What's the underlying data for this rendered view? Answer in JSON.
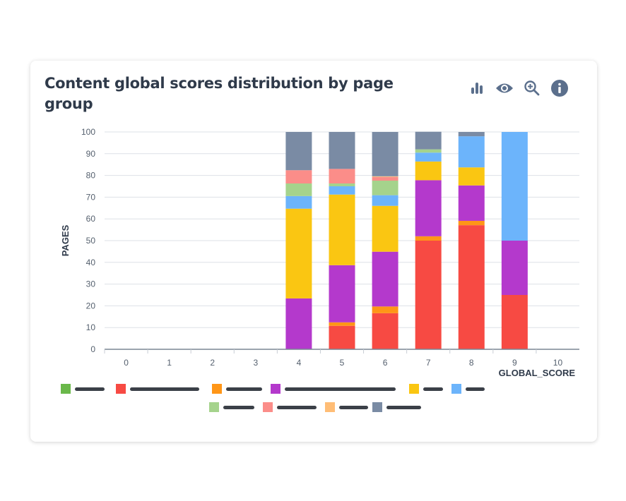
{
  "card": {
    "title": "Content global scores distribution by page group",
    "icons": [
      "bar-chart-icon",
      "eye-icon",
      "zoom-in-icon",
      "info-icon"
    ],
    "icon_color": "#5b6f8c"
  },
  "chart_data": {
    "type": "bar",
    "stacked": true,
    "title": "Content global scores distribution by page group",
    "xlabel": "GLOBAL_SCORE",
    "ylabel": "PAGES",
    "ylim": [
      0,
      100
    ],
    "yticks": [
      "0",
      "10",
      "20",
      "30",
      "40",
      "50",
      "60",
      "70",
      "80",
      "90",
      "100"
    ],
    "grid": true,
    "legend_placement": "bottom",
    "categories": [
      "0",
      "1",
      "2",
      "3",
      "4",
      "5",
      "6",
      "7",
      "8",
      "9",
      "10"
    ],
    "series": [
      {
        "color": "#6ab84a",
        "values": [
          0,
          0,
          0,
          0,
          0,
          0,
          0,
          0,
          0,
          0,
          0
        ]
      },
      {
        "color": "#f74a43",
        "values": [
          0,
          0,
          0,
          0,
          0,
          10.8,
          16.6,
          50,
          57.1,
          25,
          0
        ]
      },
      {
        "color": "#ff9617",
        "values": [
          0,
          0,
          0,
          0,
          0,
          1.6,
          3.1,
          2,
          2,
          0,
          0
        ]
      },
      {
        "color": "#b439cc",
        "values": [
          0,
          0,
          0,
          0,
          23.4,
          26.3,
          25.2,
          25.8,
          16.3,
          25,
          0
        ]
      },
      {
        "color": "#fac612",
        "values": [
          0,
          0,
          0,
          0,
          41.3,
          32.5,
          21.1,
          8.6,
          8.3,
          0,
          0
        ]
      },
      {
        "color": "#6cb4fb",
        "values": [
          0,
          0,
          0,
          0,
          5.8,
          3.8,
          4.9,
          4.1,
          14.3,
          50,
          0
        ]
      },
      {
        "color": "#a5d38c",
        "values": [
          0,
          0,
          0,
          0,
          5.8,
          1.3,
          6.7,
          1.5,
          0,
          0,
          0
        ]
      },
      {
        "color": "#fb8d89",
        "values": [
          0,
          0,
          0,
          0,
          6.1,
          6.7,
          1.7,
          0,
          0,
          0,
          0
        ]
      },
      {
        "color": "#ffbd76",
        "values": [
          0,
          0,
          0,
          0,
          0,
          0,
          0.3,
          0,
          0,
          0,
          0
        ]
      },
      {
        "color": "#7a8ba4",
        "values": [
          0,
          0,
          0,
          0,
          17.6,
          17,
          20.4,
          8.1,
          2,
          0,
          0
        ]
      }
    ]
  }
}
